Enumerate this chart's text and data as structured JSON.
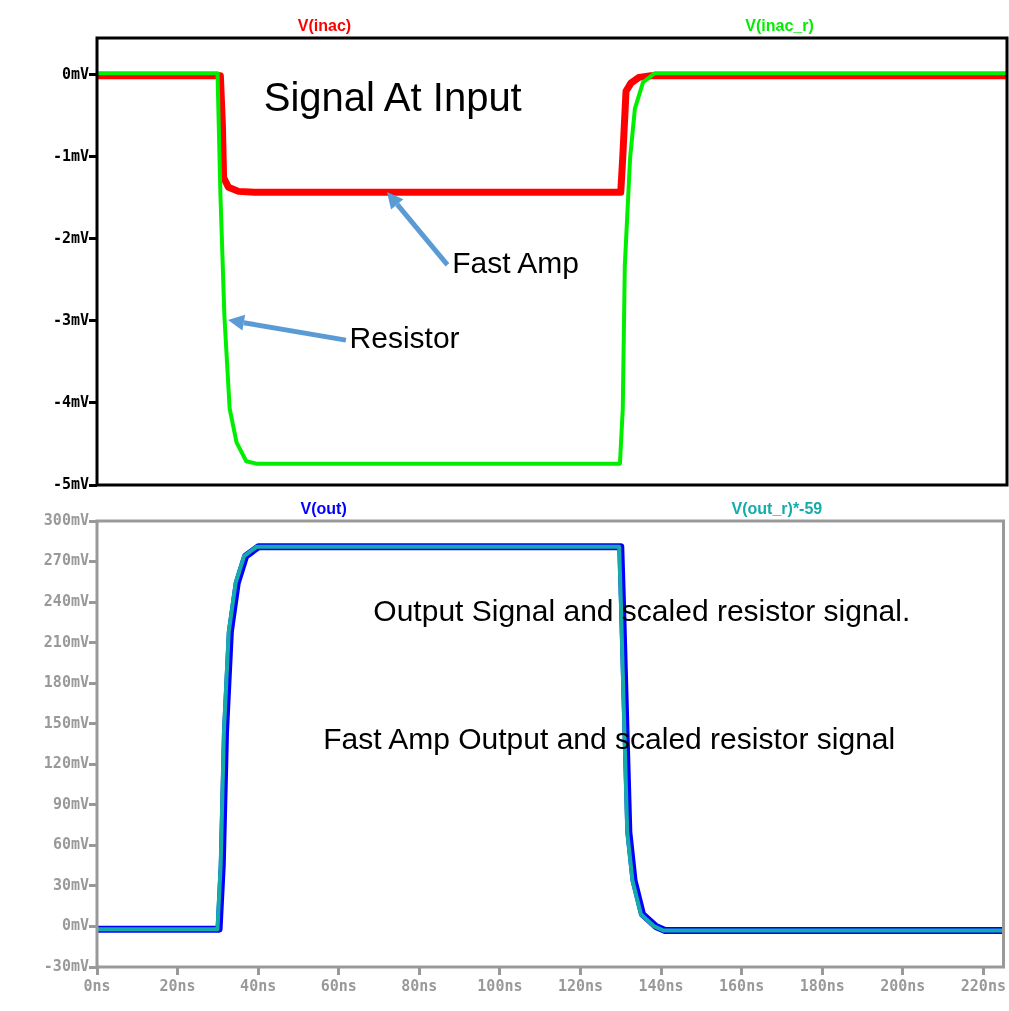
{
  "chart_data": [
    {
      "type": "line",
      "title": null,
      "legend": "top",
      "tick_labels": "y",
      "marker": "none",
      "line_style": "solid",
      "grid": false,
      "xlim": [
        0,
        225
      ],
      "ylim": [
        -5,
        0.45
      ],
      "yticks": [
        {
          "value": 0,
          "label": "0mV"
        },
        {
          "value": -1,
          "label": "-1mV"
        },
        {
          "value": -2,
          "label": "-2mV"
        },
        {
          "value": -3,
          "label": "-3mV"
        },
        {
          "value": -4,
          "label": "-4mV"
        },
        {
          "value": -5,
          "label": "-5mV"
        }
      ],
      "series": [
        {
          "name": "V(inac)",
          "color": "#ff0000",
          "x": [
            0,
            30.5,
            31,
            31.3,
            32.5,
            35,
            39,
            129.5,
            130,
            130.8,
            132,
            134,
            137,
            225
          ],
          "values": [
            -0.01,
            -0.01,
            -0.6,
            -1.25,
            -1.37,
            -1.42,
            -1.43,
            -1.43,
            -1.0,
            -0.2,
            -0.1,
            -0.03,
            -0.01,
            -0.01
          ]
        },
        {
          "name": "V(inac_r)",
          "color": "#00ee00",
          "x": [
            0,
            29.8,
            30.5,
            31.5,
            32.8,
            34.5,
            36.9,
            39.4,
            129.3,
            130,
            130.5,
            131.8,
            133,
            135,
            137.9,
            225
          ],
          "values": [
            0.02,
            0.02,
            -1.43,
            -2.94,
            -4.07,
            -4.48,
            -4.71,
            -4.74,
            -4.74,
            -4.07,
            -2.33,
            -1.02,
            -0.41,
            -0.09,
            0.02,
            0.02
          ]
        }
      ],
      "annotations": [
        "Signal At Input",
        {
          "text": "Fast Amp",
          "x": 71.7,
          "y": -1.43
        },
        "Resistor"
      ]
    },
    {
      "type": "line",
      "legend": "top",
      "marker": "none",
      "line_style": "solid",
      "grid": false,
      "xlim": [
        0,
        225
      ],
      "ylim": [
        -30,
        300
      ],
      "xticks": [
        {
          "value": 0,
          "label": "0ns"
        },
        {
          "value": 20,
          "label": "20ns"
        },
        {
          "value": 40,
          "label": "40ns"
        },
        {
          "value": 60,
          "label": "60ns"
        },
        {
          "value": 80,
          "label": "80ns"
        },
        {
          "value": 100,
          "label": "100ns"
        },
        {
          "value": 120,
          "label": "120ns"
        },
        {
          "value": 140,
          "label": "140ns"
        },
        {
          "value": 160,
          "label": "160ns"
        },
        {
          "value": 180,
          "label": "180ns"
        },
        {
          "value": 200,
          "label": "200ns"
        },
        {
          "value": 220,
          "label": "220ns"
        }
      ],
      "yticks": [
        {
          "value": 300,
          "label": "300mV"
        },
        {
          "value": 270,
          "label": "270mV"
        },
        {
          "value": 240,
          "label": "240mV"
        },
        {
          "value": 210,
          "label": "210mV"
        },
        {
          "value": 180,
          "label": "180mV"
        },
        {
          "value": 150,
          "label": "150mV"
        },
        {
          "value": 120,
          "label": "120mV"
        },
        {
          "value": 90,
          "label": "90mV"
        },
        {
          "value": 60,
          "label": "60mV"
        },
        {
          "value": 30,
          "label": "30mV"
        },
        {
          "value": 0,
          "label": "0mV"
        },
        {
          "value": -30,
          "label": "-30mV"
        }
      ],
      "series": [
        {
          "name": "V(out)",
          "color": "#0000ff",
          "x": [
            0,
            30.3,
            31.1,
            31.9,
            33.1,
            34.8,
            36.9,
            40.1,
            130,
            130.4,
            131.3,
            132,
            133.3,
            135.4,
            138.7,
            141,
            225
          ],
          "values": [
            -2,
            -2,
            46,
            144,
            218,
            254,
            274,
            281,
            281,
            242,
            144,
            70,
            34,
            9,
            0,
            -3,
            -3
          ]
        },
        {
          "name": "V(out_r)*-59",
          "color": "#14abab",
          "x": [
            0,
            29.9,
            30.7,
            31.5,
            32.7,
            34.4,
            36.5,
            39.7,
            129.6,
            130,
            130.9,
            131.6,
            132.9,
            135,
            138.3,
            140.6,
            225
          ],
          "values": [
            -2,
            -2,
            46,
            144,
            218,
            254,
            274,
            281,
            281,
            242,
            144,
            70,
            34,
            9,
            0,
            -3,
            -3
          ]
        }
      ],
      "annotations": [
        "Output Signal and scaled resistor signal.",
        "Fast Amp Output and scaled resistor signal"
      ]
    }
  ]
}
